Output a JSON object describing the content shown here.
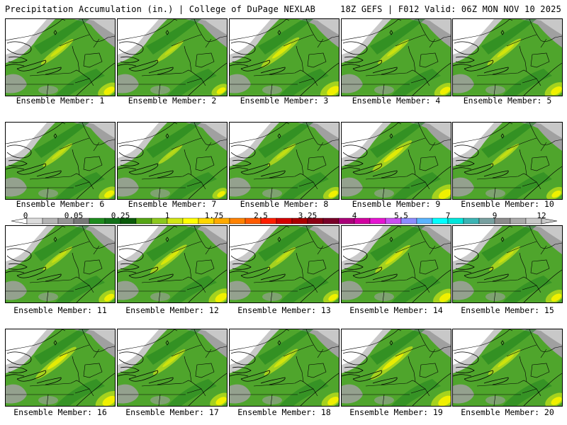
{
  "header": {
    "title": "Precipitation Accumulation (in.) | College of DuPage NEXLAB",
    "run_info": "18Z GEFS | F012 Valid: 06Z MON NOV 10 2025"
  },
  "panels": [
    {
      "label": "Ensemble Member: 1",
      "intensity": 0.55
    },
    {
      "label": "Ensemble Member: 2",
      "intensity": 0.35
    },
    {
      "label": "Ensemble Member: 3",
      "intensity": 0.75
    },
    {
      "label": "Ensemble Member: 4",
      "intensity": 0.5
    },
    {
      "label": "Ensemble Member: 5",
      "intensity": 0.6
    },
    {
      "label": "Ensemble Member: 6",
      "intensity": 0.45
    },
    {
      "label": "Ensemble Member: 7",
      "intensity": 0.25
    },
    {
      "label": "Ensemble Member: 8",
      "intensity": 0.4
    },
    {
      "label": "Ensemble Member: 9",
      "intensity": 0.8
    },
    {
      "label": "Ensemble Member: 10",
      "intensity": 0.4
    },
    {
      "label": "Ensemble Member: 11",
      "intensity": 0.45
    },
    {
      "label": "Ensemble Member: 12",
      "intensity": 0.7
    },
    {
      "label": "Ensemble Member: 13",
      "intensity": 0.4
    },
    {
      "label": "Ensemble Member: 14",
      "intensity": 0.65
    },
    {
      "label": "Ensemble Member: 15",
      "intensity": 0.5
    },
    {
      "label": "Ensemble Member: 16",
      "intensity": 0.85
    },
    {
      "label": "Ensemble Member: 17",
      "intensity": 0.55
    },
    {
      "label": "Ensemble Member: 18",
      "intensity": 0.6
    },
    {
      "label": "Ensemble Member: 19",
      "intensity": 0.9
    },
    {
      "label": "Ensemble Member: 20",
      "intensity": 0.55
    }
  ],
  "colorbar": {
    "tick_labels": [
      "0",
      "0.05",
      "0.25",
      "1",
      "1.75",
      "2.5",
      "3.25",
      "4",
      "5.5",
      "7",
      "9",
      "12"
    ],
    "colors": [
      "#dcdcdc",
      "#b4b4b4",
      "#969696",
      "#787878",
      "#1e8c1e",
      "#13701a",
      "#0a5a0a",
      "#55a514",
      "#8cc81e",
      "#d2e614",
      "#ffff00",
      "#ffd700",
      "#ffaa00",
      "#ff8200",
      "#ff5a00",
      "#ff1e00",
      "#d20000",
      "#aa0000",
      "#8c0014",
      "#780028",
      "#aa0078",
      "#d200a0",
      "#e614d2",
      "#c850f0",
      "#8c8cff",
      "#5ab4ff",
      "#00ffff",
      "#00e6dc",
      "#3cb4b4",
      "#78a0a0",
      "#8c8c8c",
      "#aaaaaa",
      "#c8c8c8"
    ]
  },
  "map_colors": {
    "green_light": "#4fa52c",
    "green_dark": "#1e821e",
    "yellow_green": "#a5d21e",
    "yellow": "#f0f000",
    "gray_light": "#c8c8c8",
    "gray_mid": "#a0a0a0",
    "gray_dark": "#787878"
  }
}
